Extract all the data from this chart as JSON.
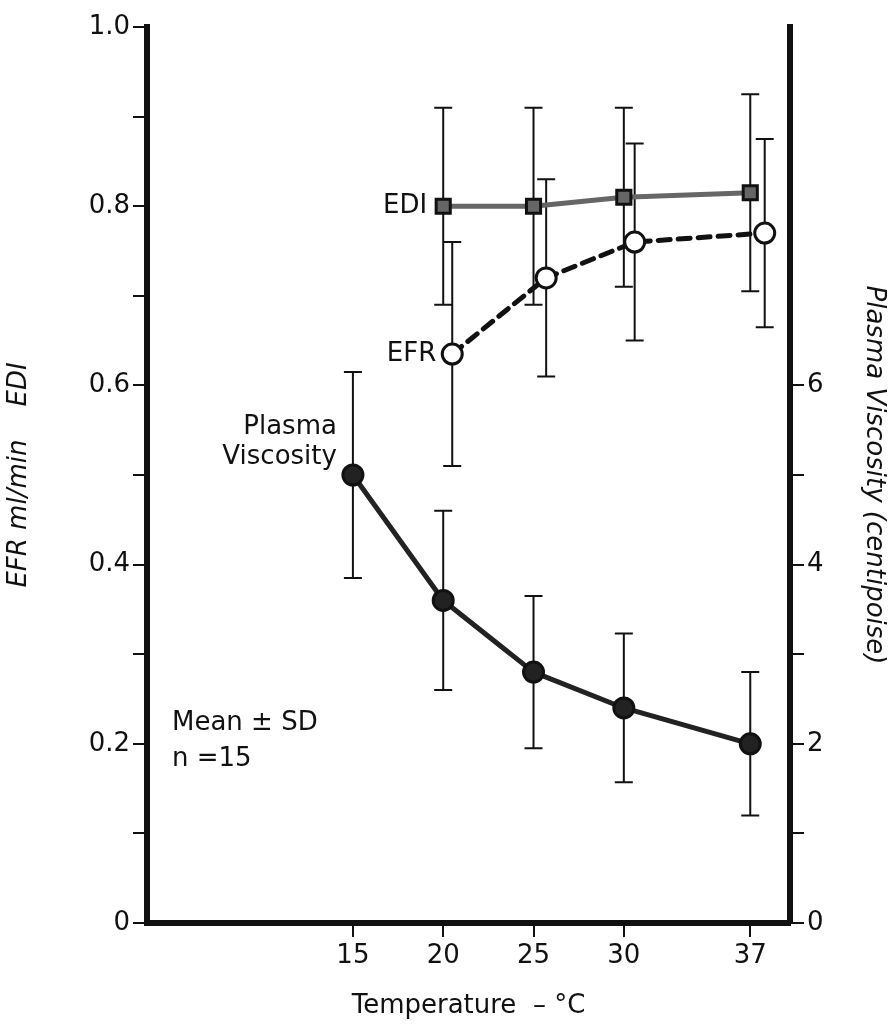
{
  "chart_data": {
    "type": "line",
    "xlabel": "Temperature  – °C",
    "ylabel": "EFR ml/min    EDI",
    "y2label": "Plasma Viscosity (centipoise)",
    "annotations": [
      "Mean ± SD",
      "n =15"
    ],
    "xlim": [
      3.6,
      39.2
    ],
    "xticks": [
      15,
      20,
      25,
      30,
      37
    ],
    "ylim": [
      0,
      1.0
    ],
    "yticks": [
      0,
      {
        "value": 0.1,
        "label": null
      },
      0.2,
      {
        "value": 0.3,
        "label": null
      },
      0.4,
      {
        "value": 0.5,
        "label": null
      },
      0.6,
      {
        "value": 0.7,
        "label": null
      },
      0.8,
      {
        "value": 0.9,
        "label": null
      },
      {
        "value": 1.0,
        "label": "1.0"
      }
    ],
    "y2lim": [
      0,
      10
    ],
    "y2ticks": [
      0,
      {
        "value": 1,
        "label": null
      },
      2,
      {
        "value": 3,
        "label": null
      },
      4,
      {
        "value": 5,
        "label": null
      },
      6
    ],
    "grid": false,
    "legend": false,
    "series": [
      {
        "name": "EDI",
        "color": "#666666",
        "marker": "square",
        "line_style": "solid",
        "x": [
          20,
          25,
          30,
          37
        ],
        "values": [
          0.8,
          0.8,
          0.81,
          0.815
        ],
        "errors": [
          0.11,
          0.11,
          0.1,
          0.11
        ]
      },
      {
        "name": "EFR",
        "color": "#111111",
        "marker": "circle",
        "line_style": "dashed",
        "x": [
          20.5,
          25.7,
          30.6,
          37.8
        ],
        "values": [
          0.635,
          0.72,
          0.76,
          0.77
        ],
        "errors": [
          0.125,
          0.11,
          0.11,
          0.105
        ]
      },
      {
        "name": "Plasma Viscosity",
        "color": "#222222",
        "marker": "circle",
        "line_style": "solid",
        "axis": "y2",
        "x": [
          15,
          20,
          25,
          30,
          37
        ],
        "values": [
          5.0,
          3.6,
          2.8,
          2.4,
          2.0
        ],
        "errors": [
          1.15,
          1.0,
          0.85,
          0.83,
          0.8
        ]
      }
    ]
  }
}
